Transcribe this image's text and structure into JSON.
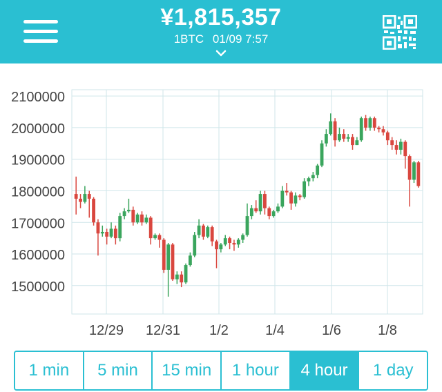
{
  "header": {
    "price": "¥1,815,357",
    "unit": "1BTC",
    "timestamp": "01/09 7:57",
    "background": "#2abfd2",
    "menu_icon": "hamburger-menu-icon",
    "expand_icon": "chevron-down-icon",
    "qr_icon": "qr-code-icon"
  },
  "chart_data": {
    "type": "candlestick",
    "y_ticks": [
      "2100000",
      "2000000",
      "1900000",
      "1800000",
      "1700000",
      "1600000",
      "1500000"
    ],
    "y_tick_values": [
      2100000,
      2000000,
      1900000,
      1800000,
      1700000,
      1600000,
      1500000
    ],
    "x_ticks": [
      "12/29",
      "12/31",
      "1/2",
      "1/4",
      "1/6",
      "1/8"
    ],
    "ylim": [
      1410000,
      2120000
    ],
    "grid": true,
    "up_color": "#3aa55d",
    "down_color": "#d9473f",
    "candles": [
      [
        1790000,
        1775000,
        1845000,
        1725000
      ],
      [
        1775000,
        1765000,
        1790000,
        1745000
      ],
      [
        1765000,
        1790000,
        1815000,
        1760000
      ],
      [
        1790000,
        1775000,
        1800000,
        1715000
      ],
      [
        1775000,
        1700000,
        1780000,
        1690000
      ],
      [
        1700000,
        1665000,
        1710000,
        1595000
      ],
      [
        1665000,
        1670000,
        1690000,
        1655000
      ],
      [
        1670000,
        1655000,
        1680000,
        1630000
      ],
      [
        1655000,
        1680000,
        1700000,
        1650000
      ],
      [
        1680000,
        1650000,
        1690000,
        1630000
      ],
      [
        1650000,
        1720000,
        1730000,
        1640000
      ],
      [
        1720000,
        1735000,
        1745000,
        1710000
      ],
      [
        1735000,
        1740000,
        1775000,
        1730000
      ],
      [
        1740000,
        1700000,
        1750000,
        1690000
      ],
      [
        1700000,
        1725000,
        1730000,
        1695000
      ],
      [
        1725000,
        1700000,
        1735000,
        1690000
      ],
      [
        1700000,
        1715000,
        1725000,
        1695000
      ],
      [
        1715000,
        1650000,
        1720000,
        1630000
      ],
      [
        1650000,
        1660000,
        1665000,
        1645000
      ],
      [
        1660000,
        1645000,
        1665000,
        1620000
      ],
      [
        1645000,
        1550000,
        1650000,
        1540000
      ],
      [
        1550000,
        1630000,
        1635000,
        1465000
      ],
      [
        1630000,
        1520000,
        1635000,
        1515000
      ],
      [
        1520000,
        1535000,
        1545000,
        1505000
      ],
      [
        1535000,
        1510000,
        1545000,
        1495000
      ],
      [
        1510000,
        1565000,
        1570000,
        1505000
      ],
      [
        1565000,
        1595000,
        1605000,
        1560000
      ],
      [
        1595000,
        1660000,
        1670000,
        1590000
      ],
      [
        1660000,
        1690000,
        1710000,
        1650000
      ],
      [
        1690000,
        1655000,
        1695000,
        1645000
      ],
      [
        1655000,
        1685000,
        1690000,
        1650000
      ],
      [
        1685000,
        1640000,
        1690000,
        1625000
      ],
      [
        1640000,
        1615000,
        1645000,
        1555000
      ],
      [
        1615000,
        1630000,
        1635000,
        1605000
      ],
      [
        1630000,
        1650000,
        1660000,
        1625000
      ],
      [
        1650000,
        1635000,
        1655000,
        1615000
      ],
      [
        1635000,
        1630000,
        1645000,
        1610000
      ],
      [
        1630000,
        1645000,
        1650000,
        1620000
      ],
      [
        1645000,
        1660000,
        1665000,
        1635000
      ],
      [
        1660000,
        1720000,
        1760000,
        1655000
      ],
      [
        1720000,
        1745000,
        1755000,
        1710000
      ],
      [
        1745000,
        1735000,
        1770000,
        1730000
      ],
      [
        1735000,
        1790000,
        1800000,
        1725000
      ],
      [
        1790000,
        1745000,
        1800000,
        1725000
      ],
      [
        1745000,
        1720000,
        1750000,
        1710000
      ],
      [
        1720000,
        1735000,
        1740000,
        1715000
      ],
      [
        1735000,
        1750000,
        1760000,
        1730000
      ],
      [
        1750000,
        1800000,
        1815000,
        1745000
      ],
      [
        1800000,
        1795000,
        1825000,
        1785000
      ],
      [
        1795000,
        1760000,
        1800000,
        1740000
      ],
      [
        1760000,
        1785000,
        1795000,
        1750000
      ],
      [
        1785000,
        1780000,
        1790000,
        1770000
      ],
      [
        1780000,
        1830000,
        1840000,
        1775000
      ],
      [
        1830000,
        1840000,
        1845000,
        1815000
      ],
      [
        1840000,
        1850000,
        1860000,
        1830000
      ],
      [
        1850000,
        1880000,
        1885000,
        1840000
      ],
      [
        1880000,
        1950000,
        1960000,
        1875000
      ],
      [
        1950000,
        1980000,
        1995000,
        1940000
      ],
      [
        1980000,
        2020000,
        2045000,
        1975000
      ],
      [
        2020000,
        1960000,
        2030000,
        1940000
      ],
      [
        1960000,
        1980000,
        2000000,
        1955000
      ],
      [
        1980000,
        1965000,
        1995000,
        1955000
      ],
      [
        1965000,
        1970000,
        1980000,
        1955000
      ],
      [
        1970000,
        1945000,
        1980000,
        1930000
      ],
      [
        1945000,
        1960000,
        1970000,
        1945000
      ],
      [
        1960000,
        2030000,
        2035000,
        1955000
      ],
      [
        2030000,
        2000000,
        2040000,
        1990000
      ],
      [
        2000000,
        2030000,
        2035000,
        1990000
      ],
      [
        2030000,
        2000000,
        2035000,
        1990000
      ],
      [
        2000000,
        1995000,
        2005000,
        1985000
      ],
      [
        1995000,
        1985000,
        2005000,
        1975000
      ],
      [
        1985000,
        1960000,
        1990000,
        1945000
      ],
      [
        1960000,
        1945000,
        1970000,
        1930000
      ],
      [
        1945000,
        1930000,
        1960000,
        1915000
      ],
      [
        1930000,
        1955000,
        1965000,
        1915000
      ],
      [
        1955000,
        1910000,
        1960000,
        1870000
      ],
      [
        1910000,
        1835000,
        1915000,
        1750000
      ],
      [
        1835000,
        1890000,
        1895000,
        1825000
      ],
      [
        1890000,
        1815000,
        1895000,
        1810000
      ]
    ]
  },
  "timeframes": {
    "items": [
      "1 min",
      "5 min",
      "15 min",
      "1 hour",
      "4 hour",
      "1 day"
    ],
    "active": "4 hour"
  }
}
